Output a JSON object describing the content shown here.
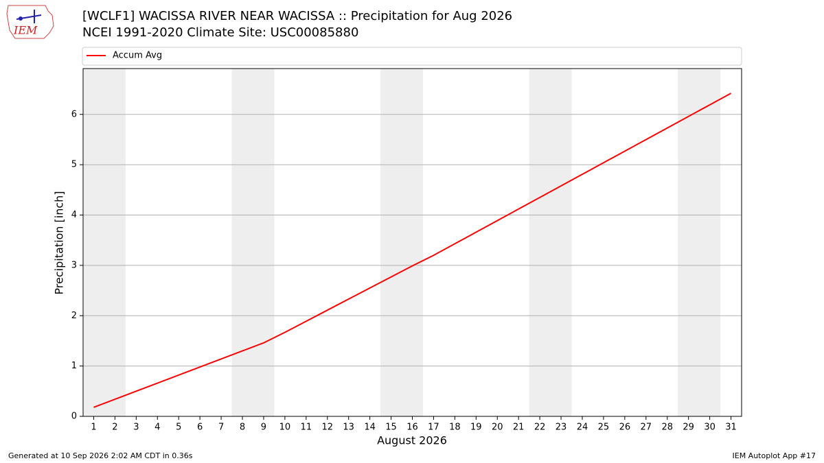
{
  "chart_data": {
    "type": "line",
    "title": "[WCLF1] WACISSA RIVER NEAR WACISSA :: Precipitation for Aug 2026",
    "subtitle": "NCEI 1991-2020 Climate Site: USC00085880",
    "logo_text": "IEM",
    "xlabel": "August 2026",
    "ylabel": "Precipitation [inch]",
    "x": [
      1,
      2,
      3,
      4,
      5,
      6,
      7,
      8,
      9,
      10,
      11,
      12,
      13,
      14,
      15,
      16,
      17,
      18,
      19,
      20,
      21,
      22,
      23,
      24,
      25,
      26,
      27,
      28,
      29,
      30,
      31
    ],
    "series": [
      {
        "name": "Accum Avg",
        "color": "#ff0000",
        "values": [
          0.18,
          0.34,
          0.5,
          0.66,
          0.82,
          0.98,
          1.14,
          1.3,
          1.46,
          1.67,
          1.89,
          2.11,
          2.33,
          2.55,
          2.77,
          2.99,
          3.2,
          3.43,
          3.66,
          3.89,
          4.12,
          4.35,
          4.58,
          4.81,
          5.04,
          5.27,
          5.5,
          5.73,
          5.96,
          6.19,
          6.42
        ]
      }
    ],
    "shaded_spans": [
      [
        0.5,
        2.5
      ],
      [
        7.5,
        9.5
      ],
      [
        14.5,
        16.5
      ],
      [
        21.5,
        23.5
      ],
      [
        28.5,
        30.5
      ]
    ],
    "xlim": [
      0.5,
      31.5
    ],
    "xticks": [
      1,
      2,
      3,
      4,
      5,
      6,
      7,
      8,
      9,
      10,
      11,
      12,
      13,
      14,
      15,
      16,
      17,
      18,
      19,
      20,
      21,
      22,
      23,
      24,
      25,
      26,
      27,
      28,
      29,
      30,
      31
    ],
    "ylim": [
      0,
      6.91
    ],
    "yticks": [
      0,
      1,
      2,
      3,
      4,
      5,
      6
    ],
    "grid": true,
    "legend": "top",
    "footer_left": "Generated at 10 Sep 2026 2:02 AM CDT in 0.36s",
    "footer_right": "IEM Autoplot App #17"
  }
}
